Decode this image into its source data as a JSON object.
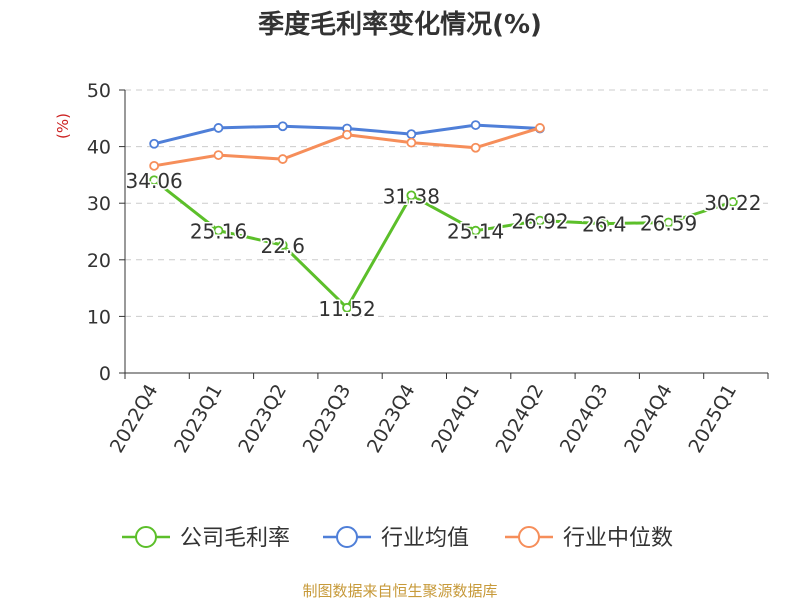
{
  "source": "制图数据来自恒生聚源数据库",
  "chart_data": {
    "type": "line",
    "title": "季度毛利率变化情况(%)",
    "ylabel": "(%)",
    "ylim": [
      0,
      50
    ],
    "yticks": [
      0,
      10,
      20,
      30,
      40,
      50
    ],
    "grid": true,
    "legend_position": "bottom",
    "categories": [
      "2022Q4",
      "2023Q1",
      "2023Q2",
      "2023Q3",
      "2023Q4",
      "2024Q1",
      "2024Q2",
      "2024Q3",
      "2024Q4",
      "2025Q1"
    ],
    "series": [
      {
        "name": "公司毛利率",
        "color": "#5cbf2a",
        "show_labels": true,
        "values": [
          34.06,
          25.16,
          22.6,
          11.52,
          31.38,
          25.14,
          26.92,
          26.4,
          26.59,
          30.22
        ]
      },
      {
        "name": "行业均值",
        "color": "#4f7fd8",
        "show_labels": false,
        "values": [
          40.5,
          43.3,
          43.6,
          43.2,
          42.2,
          43.8,
          43.2,
          null,
          null,
          null
        ]
      },
      {
        "name": "行业中位数",
        "color": "#f68e5a",
        "show_labels": false,
        "values": [
          36.6,
          38.5,
          37.8,
          42.1,
          40.7,
          39.8,
          43.3,
          null,
          null,
          null
        ]
      }
    ]
  }
}
